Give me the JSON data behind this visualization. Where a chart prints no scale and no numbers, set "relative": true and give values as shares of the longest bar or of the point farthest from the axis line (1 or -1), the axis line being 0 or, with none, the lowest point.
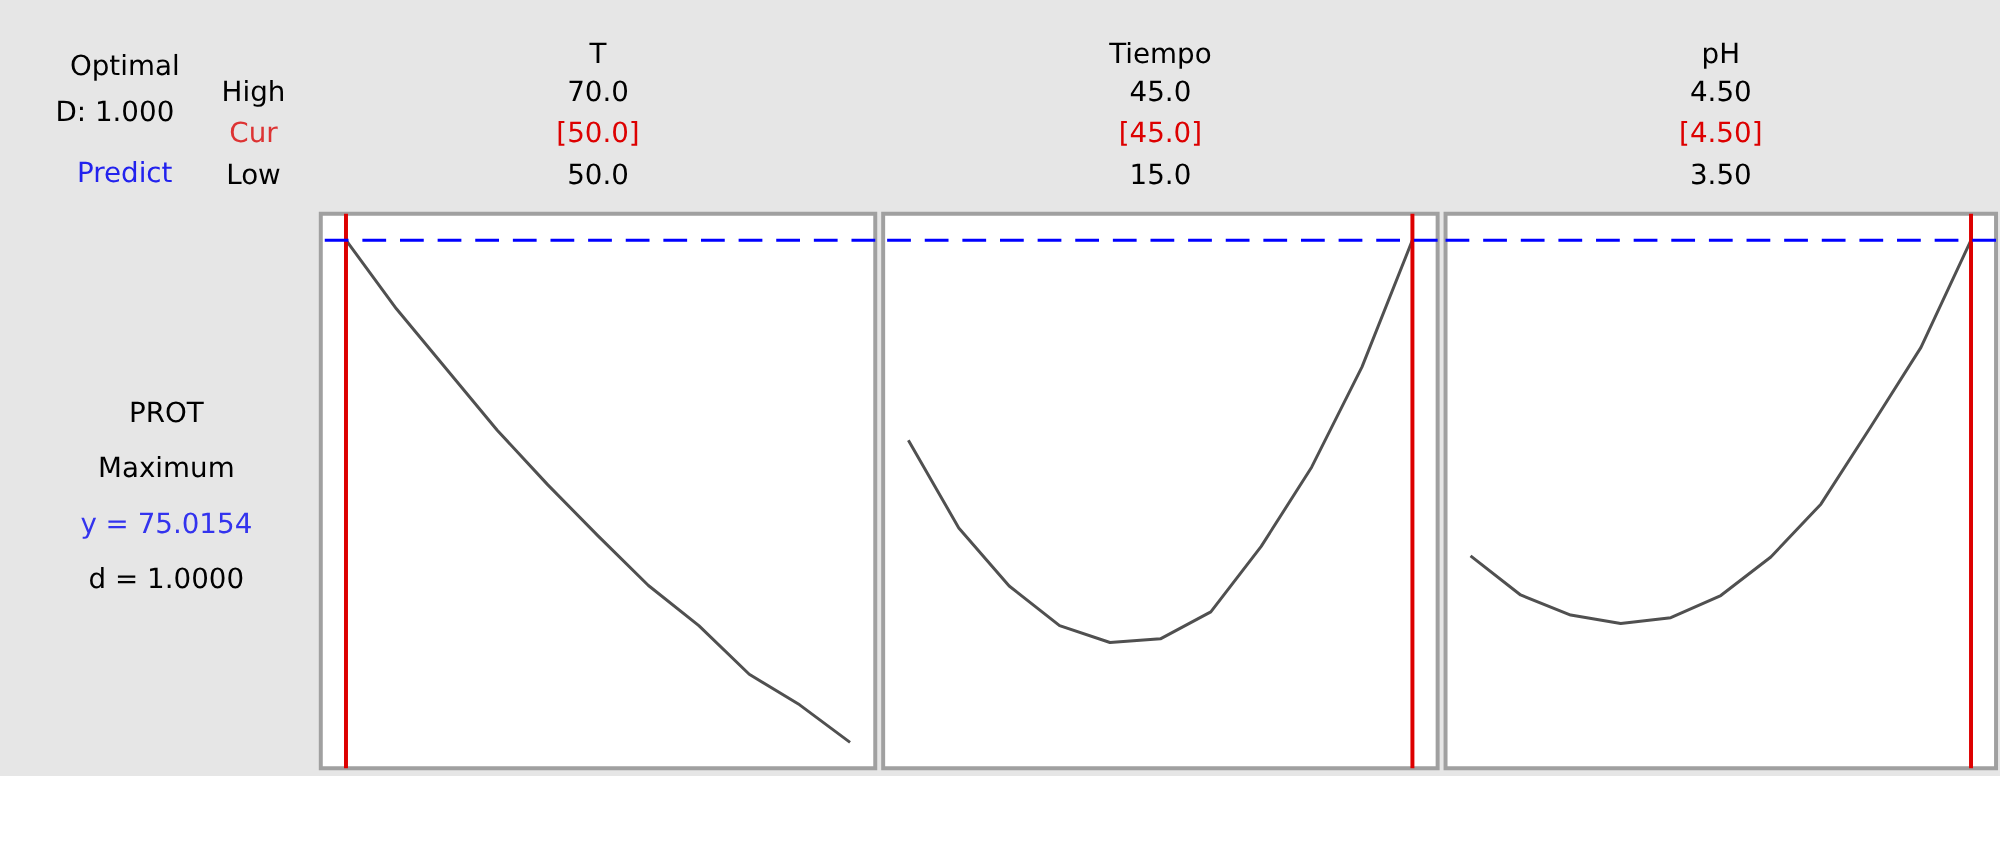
{
  "chart_data": [
    {
      "type": "other",
      "annotations": [
        "Optimal",
        "D: 1.000",
        "Predict",
        "High",
        "Cur",
        "Low",
        "PROT",
        "Maximum",
        "y = 75.0154",
        "d = 1.0000"
      ]
    },
    {
      "type": "line",
      "title": "T",
      "annotations": [
        "70.0",
        "[50.0]",
        "50.0"
      ],
      "relative": true,
      "categories": [
        null,
        null,
        null,
        null,
        null,
        null,
        null,
        null,
        null,
        null,
        null
      ],
      "series": [
        {
          "color": "#505050",
          "values": [
            1.0,
            0.87,
            0.755,
            0.64,
            0.537,
            0.44,
            0.346,
            0.27,
            0.178,
            0.12,
            0.049
          ]
        }
      ],
      "ref_lines": [
        {
          "axis": "y",
          "value": 1,
          "color": "#0000ff",
          "line_style": "dashed"
        }
      ]
    },
    {
      "type": "line",
      "title": "Tiempo",
      "annotations": [
        "45.0",
        "[45.0]",
        "15.0"
      ],
      "relative": true,
      "categories": [
        null,
        null,
        null,
        null,
        null,
        null,
        null,
        null,
        null,
        null,
        null
      ],
      "series": [
        {
          "color": "#505050",
          "values": [
            0.621,
            0.455,
            0.345,
            0.27,
            0.238,
            0.245,
            0.296,
            0.42,
            0.57,
            0.76,
            1.0
          ]
        }
      ],
      "ref_lines": [
        {
          "axis": "y",
          "value": 1,
          "color": "#0000ff",
          "line_style": "dashed"
        }
      ]
    },
    {
      "type": "line",
      "title": "pH",
      "annotations": [
        "4.50",
        "[4.50]",
        "3.50"
      ],
      "relative": true,
      "categories": [
        null,
        null,
        null,
        null,
        null,
        null,
        null,
        null,
        null,
        null,
        null
      ],
      "series": [
        {
          "color": "#505050",
          "values": [
            0.402,
            0.328,
            0.29,
            0.274,
            0.285,
            0.327,
            0.4,
            0.5,
            0.647,
            0.797,
            1.0
          ]
        }
      ],
      "ref_lines": [
        {
          "axis": "y",
          "value": 1,
          "color": "#0000ff",
          "line_style": "dashed"
        }
      ]
    }
  ]
}
